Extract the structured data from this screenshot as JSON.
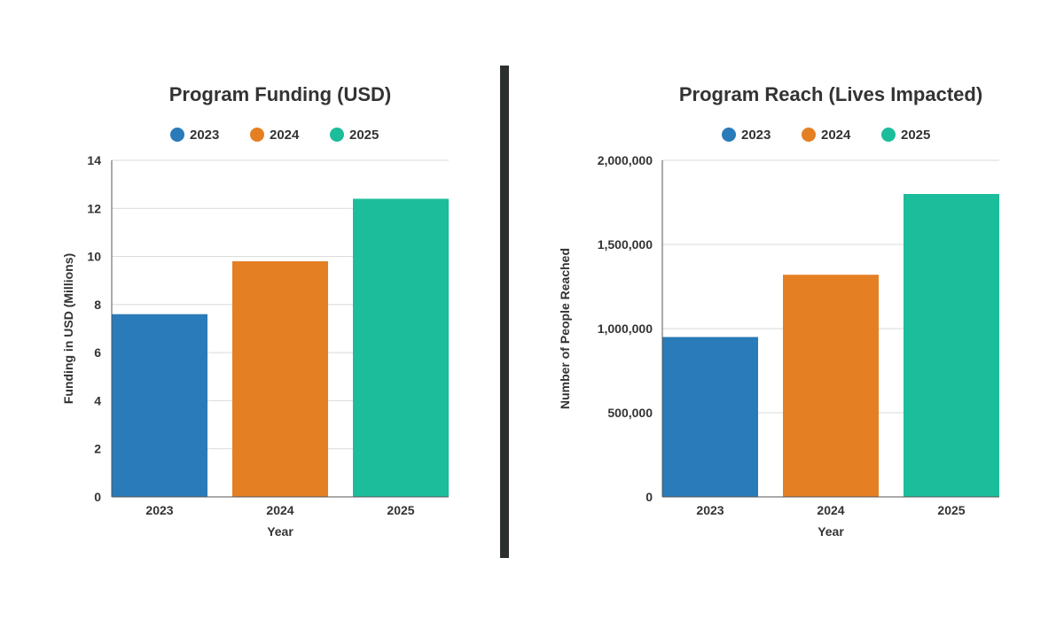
{
  "chart_data": [
    {
      "type": "bar",
      "title": "Program Funding (USD)",
      "categories": [
        "2023",
        "2024",
        "2025"
      ],
      "values": [
        7.6,
        9.8,
        12.4
      ],
      "legend": [
        "2023",
        "2024",
        "2025"
      ],
      "xlabel": "Year",
      "ylabel": "Funding in USD (Millions)",
      "ylim": [
        0,
        14
      ],
      "yticks": [
        0,
        2,
        4,
        6,
        8,
        10,
        12,
        14
      ],
      "ytick_labels": [
        "0",
        "2",
        "4",
        "6",
        "8",
        "10",
        "12",
        "14"
      ],
      "colors": [
        "#2a7bb9",
        "#e57f23",
        "#1bbd9b"
      ],
      "grid": true,
      "legend_position": "top"
    },
    {
      "type": "bar",
      "title": "Program Reach (Lives Impacted)",
      "categories": [
        "2023",
        "2024",
        "2025"
      ],
      "values": [
        950000,
        1320000,
        1800000
      ],
      "legend": [
        "2023",
        "2024",
        "2025"
      ],
      "xlabel": "Year",
      "ylabel": "Number of People Reached",
      "ylim": [
        0,
        2000000
      ],
      "yticks": [
        0,
        500000,
        1000000,
        1500000,
        2000000
      ],
      "ytick_labels": [
        "0",
        "500,000",
        "1,000,000",
        "1,500,000",
        "2,000,000"
      ],
      "colors": [
        "#2a7bb9",
        "#e57f23",
        "#1bbd9b"
      ],
      "grid": true,
      "legend_position": "top"
    }
  ],
  "divider_color": "#2b2f2e"
}
